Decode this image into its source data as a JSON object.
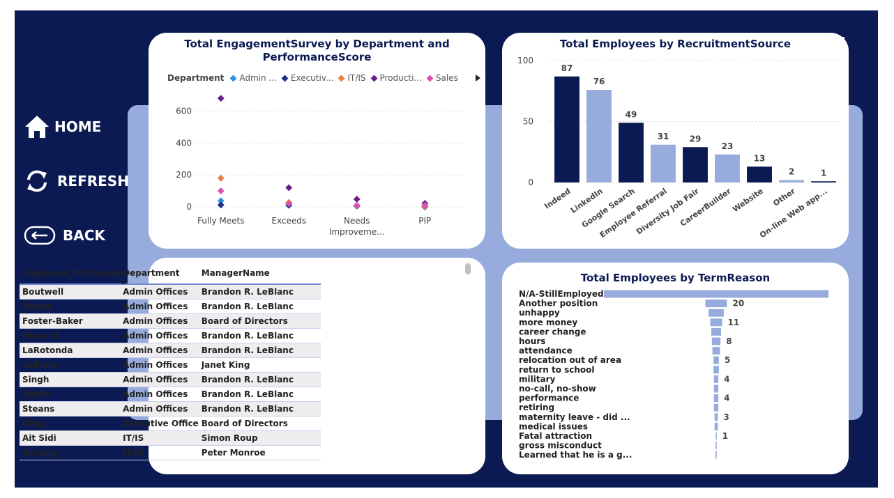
{
  "nav": {
    "home_label": "HOME",
    "refresh_label": "REFRESH",
    "back_label": "BACK"
  },
  "scatter": {
    "title_line1": "Total EngagementSurvey by Department and",
    "title_line2": "PerformanceScore",
    "legend_label": "Department",
    "legend_items": [
      {
        "label": "Admin ...",
        "color": "#2f8fe0"
      },
      {
        "label": "Executiv...",
        "color": "#1f2f8a"
      },
      {
        "label": "IT/IS",
        "color": "#e57f44"
      },
      {
        "label": "Producti...",
        "color": "#6a1f86"
      },
      {
        "label": "Sales",
        "color": "#d852b3"
      }
    ]
  },
  "table": {
    "headers": [
      "Employee_Firstname",
      "Department",
      "ManagerName"
    ],
    "rows": [
      [
        "Boutwell",
        "Admin Offices",
        "Brandon R. LeBlanc"
      ],
      [
        "Brown",
        "Admin Offices",
        "Brandon R. LeBlanc"
      ],
      [
        "Foster-Baker",
        "Admin Offices",
        "Board of Directors"
      ],
      [
        "Howard",
        "Admin Offices",
        "Brandon R. LeBlanc"
      ],
      [
        "LaRotonda",
        "Admin Offices",
        "Brandon R. LeBlanc"
      ],
      [
        "LeBlanc",
        "Admin Offices",
        "Janet King"
      ],
      [
        "Singh",
        "Admin Offices",
        "Brandon R. LeBlanc"
      ],
      [
        "Smith",
        "Admin Offices",
        "Brandon R. LeBlanc"
      ],
      [
        "Steans",
        "Admin Offices",
        "Brandon R. LeBlanc"
      ],
      [
        "King",
        "Executive Office",
        "Board of Directors"
      ],
      [
        "Ait Sidi",
        "IT/IS",
        "Simon Roup"
      ],
      [
        "Bacong",
        "IT/IS",
        "Peter Monroe"
      ]
    ]
  },
  "chart_data": [
    {
      "type": "scatter",
      "title": "Total EngagementSurvey by Department and PerformanceScore",
      "categories": [
        "Fully Meets",
        "Exceeds",
        "Needs Improveme...",
        "PIP"
      ],
      "yticks": [
        0,
        200,
        400,
        600
      ],
      "ylim": [
        0,
        720
      ],
      "legend_title": "Department",
      "legend_placement": "top",
      "series": [
        {
          "name": "Admin ...",
          "color": "#2f8fe0",
          "values": [
            38,
            10,
            5,
            0
          ]
        },
        {
          "name": "Executiv...",
          "color": "#1f2f8a",
          "values": [
            12,
            10,
            5,
            0
          ]
        },
        {
          "name": "IT/IS",
          "color": "#e57f44",
          "values": [
            180,
            28,
            8,
            3
          ]
        },
        {
          "name": "Producti...",
          "color": "#6a1f86",
          "values": [
            680,
            120,
            48,
            22
          ]
        },
        {
          "name": "Sales",
          "color": "#d852b3",
          "values": [
            100,
            20,
            10,
            10
          ]
        }
      ]
    },
    {
      "type": "bar",
      "title": "Total Employees by RecruitmentSource",
      "categories": [
        "Indeed",
        "LinkedIn",
        "Google Search",
        "Employee Referral",
        "Diversity Job Fair",
        "CareerBuilder",
        "Website",
        "Other",
        "On-line Web app..."
      ],
      "values": [
        87,
        76,
        49,
        31,
        29,
        23,
        13,
        2,
        1
      ],
      "colors": [
        "#0b1a52",
        "#97acdd",
        "#0b1a52",
        "#97acdd",
        "#0b1a52",
        "#97acdd",
        "#0b1a52",
        "#97acdd",
        "#0b1a52"
      ],
      "yticks": [
        0,
        50,
        100
      ],
      "ylim": [
        0,
        100
      ],
      "grid": true
    },
    {
      "type": "bar",
      "orientation": "horizontal",
      "title": "Total Employees by TermReason",
      "categories": [
        "N/A-StillEmployed",
        "Another position",
        "unhappy",
        "more money",
        "career change",
        "hours",
        "attendance",
        "relocation out of area",
        "return to school",
        "military",
        "no-call, no-show",
        "performance",
        "retiring",
        "maternity leave - did ...",
        "medical issues",
        "Fatal attraction",
        "gross misconduct",
        "Learned that he is a g..."
      ],
      "values": [
        207,
        20,
        14,
        11,
        9,
        8,
        7,
        5,
        5,
        4,
        4,
        4,
        4,
        3,
        3,
        1,
        1,
        1
      ],
      "data_labels": [
        "",
        "20",
        "",
        "11",
        "",
        "8",
        "",
        "5",
        "",
        "4",
        "",
        "4",
        "",
        "3",
        "",
        "1",
        "",
        ""
      ],
      "color": "#97acdd"
    }
  ]
}
